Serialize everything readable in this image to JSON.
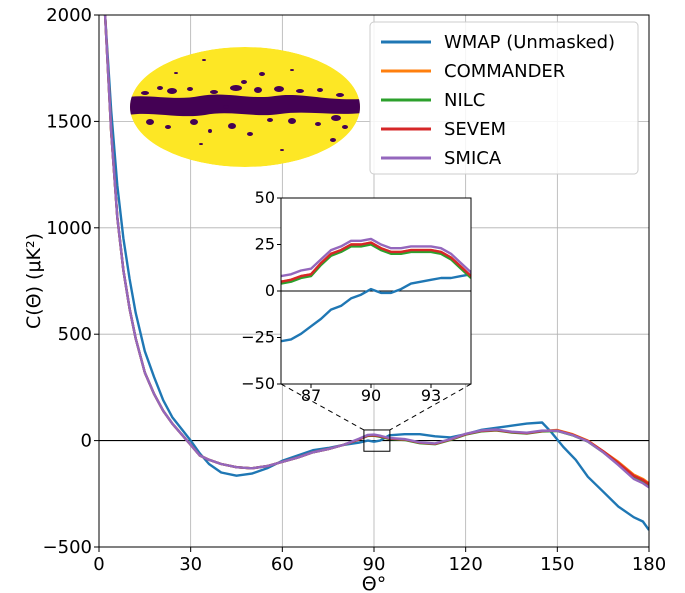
{
  "chart_data": [
    {
      "type": "line",
      "title": "",
      "xlabel": "Θ°",
      "ylabel": "C(Θ) (μK²)",
      "xlim": [
        0,
        180
      ],
      "ylim": [
        -500,
        2000
      ],
      "x_ticks": [
        "0",
        "30",
        "60",
        "90",
        "120",
        "150",
        "180"
      ],
      "y_ticks": [
        "−500",
        "0",
        "500",
        "1000",
        "1500",
        "2000"
      ],
      "grid": true,
      "legend_position": "top-right",
      "series": [
        {
          "name": "WMAP (Unmasked)",
          "color": "#1f77b4",
          "x": [
            2,
            4,
            6,
            8,
            10,
            12,
            15,
            18,
            21,
            24,
            27,
            30,
            33,
            36,
            40,
            45,
            50,
            55,
            60,
            65,
            70,
            75,
            80,
            85,
            88,
            90,
            92,
            95,
            100,
            105,
            110,
            115,
            120,
            125,
            130,
            135,
            140,
            145,
            148,
            152,
            156,
            160,
            165,
            170,
            175,
            178,
            180
          ],
          "y": [
            2000,
            1550,
            1200,
            950,
            760,
            600,
            420,
            300,
            190,
            110,
            55,
            0,
            -60,
            -110,
            -150,
            -165,
            -155,
            -130,
            -95,
            -70,
            -45,
            -35,
            -20,
            -10,
            0,
            -5,
            0,
            25,
            30,
            30,
            20,
            15,
            30,
            50,
            60,
            70,
            80,
            85,
            40,
            -30,
            -90,
            -170,
            -240,
            -310,
            -360,
            -380,
            -420
          ]
        },
        {
          "name": "COMMANDER",
          "color": "#ff7f0e",
          "x": [
            2,
            4,
            6,
            8,
            10,
            12,
            15,
            18,
            21,
            24,
            27,
            30,
            33,
            36,
            40,
            45,
            50,
            55,
            60,
            65,
            70,
            75,
            80,
            85,
            88,
            90,
            92,
            95,
            100,
            105,
            110,
            115,
            120,
            125,
            130,
            135,
            140,
            145,
            150,
            155,
            160,
            165,
            170,
            175,
            178,
            180
          ],
          "y": [
            2000,
            1450,
            1050,
            800,
            620,
            480,
            320,
            220,
            140,
            80,
            30,
            -20,
            -70,
            -90,
            -110,
            -125,
            -130,
            -120,
            -100,
            -80,
            -55,
            -40,
            -20,
            5,
            25,
            25,
            20,
            10,
            5,
            -10,
            -15,
            5,
            30,
            45,
            50,
            40,
            35,
            45,
            50,
            30,
            0,
            -50,
            -100,
            -160,
            -180,
            -200
          ]
        },
        {
          "name": "NILC",
          "color": "#2ca02c",
          "x": [
            2,
            4,
            6,
            8,
            10,
            12,
            15,
            18,
            21,
            24,
            27,
            30,
            33,
            36,
            40,
            45,
            50,
            55,
            60,
            65,
            70,
            75,
            80,
            85,
            88,
            90,
            92,
            95,
            100,
            105,
            110,
            115,
            120,
            125,
            130,
            135,
            140,
            145,
            150,
            155,
            160,
            165,
            170,
            175,
            178,
            180
          ],
          "y": [
            2000,
            1450,
            1050,
            800,
            620,
            480,
            320,
            220,
            140,
            80,
            30,
            -20,
            -70,
            -90,
            -110,
            -125,
            -130,
            -120,
            -100,
            -80,
            -55,
            -40,
            -20,
            5,
            22,
            23,
            18,
            8,
            3,
            -12,
            -17,
            3,
            28,
            43,
            48,
            38,
            33,
            43,
            45,
            25,
            -5,
            -55,
            -110,
            -175,
            -195,
            -215
          ]
        },
        {
          "name": "SEVEM",
          "color": "#d62728",
          "x": [
            2,
            4,
            6,
            8,
            10,
            12,
            15,
            18,
            21,
            24,
            27,
            30,
            33,
            36,
            40,
            45,
            50,
            55,
            60,
            65,
            70,
            75,
            80,
            85,
            88,
            90,
            92,
            95,
            100,
            105,
            110,
            115,
            120,
            125,
            130,
            135,
            140,
            145,
            150,
            155,
            160,
            165,
            170,
            175,
            178,
            180
          ],
          "y": [
            2000,
            1450,
            1050,
            800,
            620,
            480,
            320,
            220,
            140,
            80,
            30,
            -20,
            -70,
            -90,
            -110,
            -125,
            -130,
            -120,
            -100,
            -80,
            -55,
            -40,
            -20,
            5,
            24,
            25,
            20,
            10,
            5,
            -10,
            -15,
            5,
            30,
            45,
            50,
            40,
            35,
            45,
            48,
            28,
            -2,
            -50,
            -105,
            -165,
            -185,
            -205
          ]
        },
        {
          "name": "SMICA",
          "color": "#9467bd",
          "x": [
            2,
            4,
            6,
            8,
            10,
            12,
            15,
            18,
            21,
            24,
            27,
            30,
            33,
            36,
            40,
            45,
            50,
            55,
            60,
            65,
            70,
            75,
            80,
            85,
            88,
            90,
            92,
            95,
            100,
            105,
            110,
            115,
            120,
            125,
            130,
            135,
            140,
            145,
            150,
            155,
            160,
            165,
            170,
            175,
            178,
            180
          ],
          "y": [
            2000,
            1450,
            1050,
            800,
            620,
            480,
            320,
            220,
            140,
            80,
            30,
            -20,
            -70,
            -90,
            -110,
            -125,
            -130,
            -120,
            -100,
            -80,
            -55,
            -40,
            -20,
            8,
            27,
            28,
            23,
            12,
            7,
            -8,
            -13,
            7,
            32,
            47,
            52,
            42,
            37,
            47,
            46,
            26,
            -4,
            -55,
            -115,
            -180,
            -200,
            -220
          ]
        }
      ]
    },
    {
      "type": "line",
      "title": "",
      "xlabel": "",
      "ylabel": "",
      "xlim": [
        85.5,
        95
      ],
      "ylim": [
        -50,
        50
      ],
      "x_ticks": [
        "87",
        "90",
        "93"
      ],
      "y_ticks": [
        "−50",
        "−25",
        "0",
        "25",
        "50"
      ],
      "grid": false,
      "series": [
        {
          "name": "WMAP (Unmasked)",
          "color": "#1f77b4",
          "x": [
            85.5,
            86.0,
            86.5,
            87.0,
            87.5,
            88.0,
            88.5,
            89.0,
            89.5,
            90.0,
            90.5,
            91.0,
            91.5,
            92.0,
            92.5,
            93.0,
            93.5,
            94.0,
            94.5,
            95.0
          ],
          "y": [
            -27,
            -26,
            -23,
            -19,
            -15,
            -10,
            -8,
            -4,
            -2,
            1,
            -1,
            -1,
            1,
            4,
            5,
            6,
            7,
            7,
            8,
            9
          ]
        },
        {
          "name": "COMMANDER",
          "color": "#ff7f0e",
          "x": [
            85.5,
            86.0,
            86.5,
            87.0,
            87.5,
            88.0,
            88.5,
            89.0,
            89.5,
            90.0,
            90.5,
            91.0,
            91.5,
            92.0,
            92.5,
            93.0,
            93.5,
            94.0,
            94.5,
            95.0
          ],
          "y": [
            5,
            6,
            8,
            9,
            15,
            20,
            22,
            25,
            25,
            26,
            23,
            21,
            21,
            22,
            22,
            22,
            21,
            18,
            13,
            8
          ]
        },
        {
          "name": "NILC",
          "color": "#2ca02c",
          "x": [
            85.5,
            86.0,
            86.5,
            87.0,
            87.5,
            88.0,
            88.5,
            89.0,
            89.5,
            90.0,
            90.5,
            91.0,
            91.5,
            92.0,
            92.5,
            93.0,
            93.5,
            94.0,
            94.5,
            95.0
          ],
          "y": [
            4,
            5,
            7,
            8,
            14,
            19,
            21,
            24,
            24,
            25,
            22,
            20,
            20,
            21,
            21,
            21,
            20,
            17,
            12,
            7
          ]
        },
        {
          "name": "SEVEM",
          "color": "#d62728",
          "x": [
            85.5,
            86.0,
            86.5,
            87.0,
            87.5,
            88.0,
            88.5,
            89.0,
            89.5,
            90.0,
            90.5,
            91.0,
            91.5,
            92.0,
            92.5,
            93.0,
            93.5,
            94.0,
            94.5,
            95.0
          ],
          "y": [
            5,
            6,
            8,
            9,
            15,
            20,
            22,
            25,
            25,
            26,
            23,
            21,
            21,
            22,
            22,
            22,
            21,
            18,
            13,
            8
          ]
        },
        {
          "name": "SMICA",
          "color": "#9467bd",
          "x": [
            85.5,
            86.0,
            86.5,
            87.0,
            87.5,
            88.0,
            88.5,
            89.0,
            89.5,
            90.0,
            90.5,
            91.0,
            91.5,
            92.0,
            92.5,
            93.0,
            93.5,
            94.0,
            94.5,
            95.0
          ],
          "y": [
            8,
            9,
            11,
            12,
            17,
            22,
            24,
            27,
            27,
            28,
            25,
            23,
            23,
            24,
            24,
            24,
            23,
            20,
            15,
            10
          ]
        }
      ]
    }
  ],
  "mask_map": {
    "background_color": "#fde725",
    "mask_color": "#440154"
  }
}
